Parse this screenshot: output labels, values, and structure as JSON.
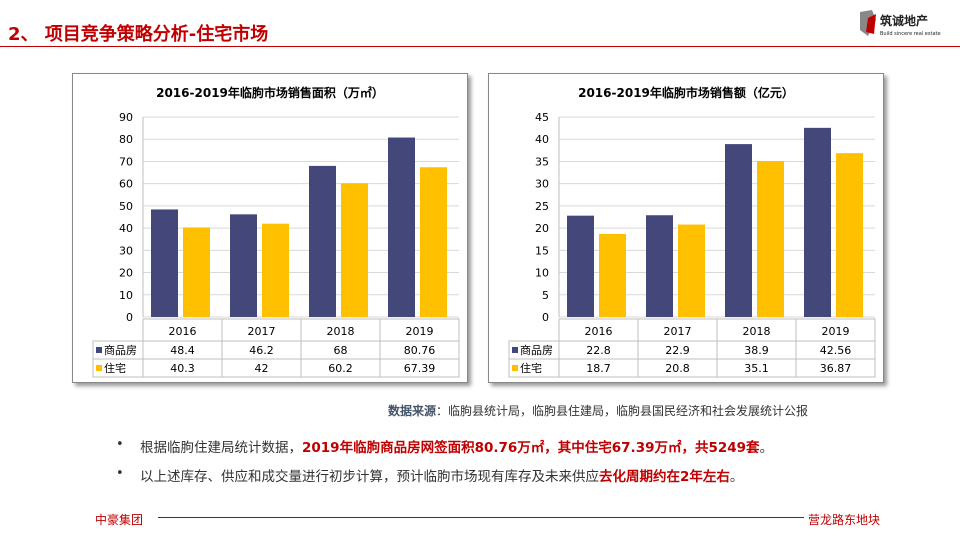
{
  "header": {
    "title": "2、 项目竞争策略分析-住宅市场",
    "logo_text": "筑诚地产",
    "logo_subtext": "Build sincere real estate"
  },
  "colors": {
    "series1": "#44477a",
    "series2": "#ffc000",
    "accent": "#c00000"
  },
  "chart_data": [
    {
      "type": "bar",
      "title": "2016-2019年临朐市场销售面积（万㎡）",
      "categories": [
        "2016",
        "2017",
        "2018",
        "2019"
      ],
      "series": [
        {
          "name": "商品房",
          "values": [
            48.4,
            46.2,
            68,
            80.76
          ]
        },
        {
          "name": "住宅",
          "values": [
            40.3,
            42,
            60.2,
            67.39
          ]
        }
      ],
      "ylim": [
        0,
        90
      ],
      "yticks": [
        0,
        10,
        20,
        30,
        40,
        50,
        60,
        70,
        80,
        90
      ],
      "grid": true,
      "legend": "data-table"
    },
    {
      "type": "bar",
      "title": "2016-2019年临朐市场销售额（亿元）",
      "categories": [
        "2016",
        "2017",
        "2018",
        "2019"
      ],
      "series": [
        {
          "name": "商品房",
          "values": [
            22.8,
            22.9,
            38.9,
            42.56
          ]
        },
        {
          "name": "住宅",
          "values": [
            18.7,
            20.8,
            35.1,
            36.87
          ]
        }
      ],
      "ylim": [
        0,
        45
      ],
      "yticks": [
        0,
        5,
        10,
        15,
        20,
        25,
        30,
        35,
        40,
        45
      ],
      "grid": true,
      "legend": "data-table"
    }
  ],
  "source": {
    "label": "数据来源",
    "text": "：临朐县统计局，临朐县住建局，临朐县国民经济和社会发展统计公报"
  },
  "bullets": [
    {
      "plain": "根据临朐住建局统计数据，",
      "highlight": "2019年临朐商品房网签面积80.76万㎡，其中住宅67.39万㎡，共5249套",
      "tail": "。"
    },
    {
      "plain": "以上述库存、供应和成交量进行初步计算，预计临朐市场现有库存及未来供应",
      "highlight": "去化周期约在2年左右",
      "tail": "。"
    }
  ],
  "footer": {
    "left": "中豪集团",
    "right": "营龙路东地块"
  }
}
